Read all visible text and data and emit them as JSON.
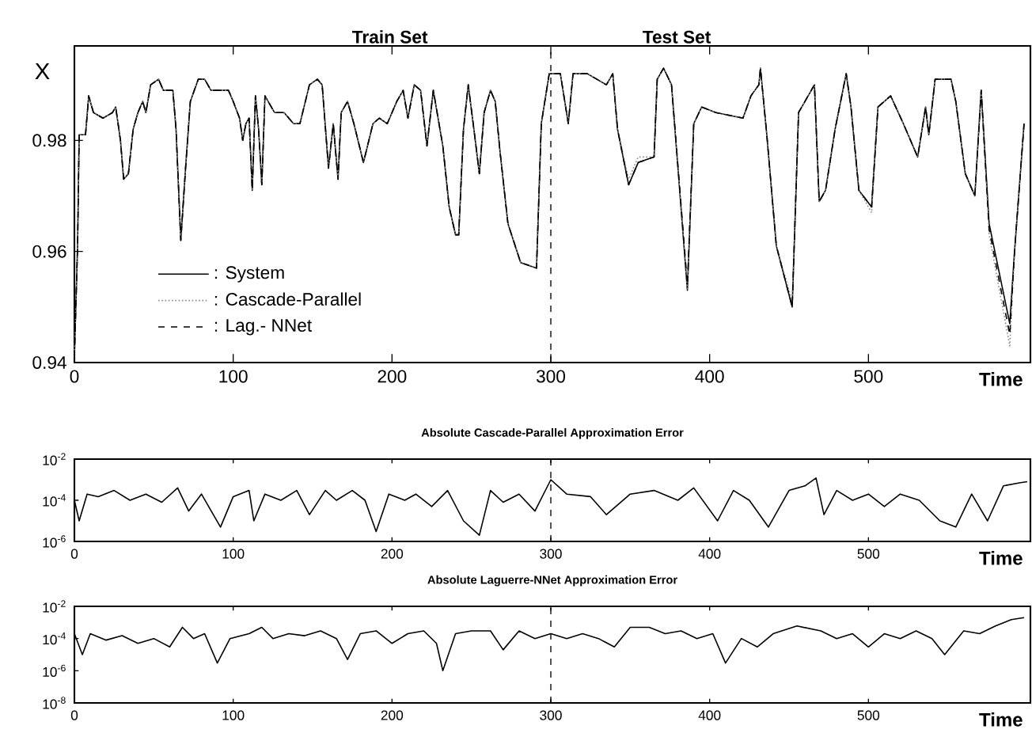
{
  "chart_data": [
    {
      "type": "line",
      "ylabel": "X",
      "xlabel": "Time",
      "xlim": [
        0,
        602
      ],
      "ylim": [
        0.94,
        0.997
      ],
      "xticks": [
        0,
        100,
        200,
        300,
        400,
        500
      ],
      "yticks": [
        0.94,
        0.96,
        0.98
      ],
      "legend": "bottom left",
      "annotations": [
        "Train Set",
        "Test Set"
      ],
      "ref_lines": [
        {
          "axis": "x",
          "value": 300,
          "line_style": "dashed",
          "color": "#000000"
        }
      ],
      "x": [
        0,
        2,
        3,
        7,
        9,
        12,
        18,
        24,
        26,
        29,
        31,
        34,
        37,
        40,
        43,
        45,
        48,
        53,
        56,
        62,
        64,
        67,
        70,
        73,
        78,
        82,
        86,
        97,
        100,
        104,
        106,
        108,
        110,
        112,
        114,
        116,
        118,
        120,
        126,
        132,
        138,
        142,
        148,
        153,
        156,
        160,
        163,
        166,
        168,
        172,
        176,
        182,
        188,
        192,
        197,
        200,
        203,
        207,
        210,
        214,
        218,
        222,
        226,
        229,
        232,
        236,
        240,
        242,
        245,
        248,
        252,
        255,
        258,
        262,
        265,
        268,
        273,
        281,
        291,
        294,
        299,
        306,
        311,
        314,
        323,
        335,
        339,
        342,
        349,
        355,
        365,
        367,
        371,
        376,
        386,
        390,
        395,
        404,
        421,
        426,
        431,
        432,
        436,
        442,
        452,
        456,
        466,
        469,
        473,
        479,
        486,
        489,
        494,
        502,
        506,
        514,
        522,
        531,
        536,
        538,
        542,
        552,
        555,
        561,
        567,
        571,
        576,
        589,
        592,
        598
      ],
      "series": [
        {
          "name": ": System",
          "color": "#000000",
          "line_style": "solid",
          "values": [
            0.941,
            0.961,
            0.981,
            0.981,
            0.988,
            0.985,
            0.984,
            0.985,
            0.986,
            0.98,
            0.973,
            0.974,
            0.982,
            0.985,
            0.987,
            0.985,
            0.99,
            0.991,
            0.989,
            0.989,
            0.982,
            0.962,
            0.975,
            0.987,
            0.991,
            0.991,
            0.989,
            0.989,
            0.987,
            0.984,
            0.98,
            0.983,
            0.984,
            0.971,
            0.988,
            0.982,
            0.972,
            0.988,
            0.985,
            0.985,
            0.983,
            0.983,
            0.99,
            0.991,
            0.99,
            0.975,
            0.983,
            0.973,
            0.985,
            0.987,
            0.983,
            0.976,
            0.983,
            0.984,
            0.983,
            0.985,
            0.987,
            0.989,
            0.984,
            0.99,
            0.989,
            0.979,
            0.989,
            0.984,
            0.979,
            0.968,
            0.963,
            0.963,
            0.982,
            0.99,
            0.981,
            0.974,
            0.985,
            0.989,
            0.987,
            0.978,
            0.965,
            0.958,
            0.957,
            0.983,
            0.992,
            0.992,
            0.983,
            0.992,
            0.992,
            0.99,
            0.992,
            0.982,
            0.972,
            0.976,
            0.977,
            0.991,
            0.993,
            0.99,
            0.953,
            0.983,
            0.986,
            0.985,
            0.984,
            0.988,
            0.99,
            0.993,
            0.981,
            0.961,
            0.95,
            0.985,
            0.99,
            0.969,
            0.971,
            0.982,
            0.992,
            0.986,
            0.971,
            0.968,
            0.986,
            0.988,
            0.983,
            0.977,
            0.986,
            0.981,
            0.991,
            0.991,
            0.987,
            0.974,
            0.97,
            0.989,
            0.965,
            0.947,
            0.96,
            0.983
          ]
        },
        {
          "name": ": Cascade-Parallel",
          "color": "#888888",
          "line_style": "dotted",
          "values": [
            0.941,
            0.961,
            0.981,
            0.981,
            0.988,
            0.985,
            0.984,
            0.985,
            0.986,
            0.98,
            0.973,
            0.974,
            0.982,
            0.985,
            0.987,
            0.985,
            0.99,
            0.991,
            0.989,
            0.989,
            0.982,
            0.962,
            0.975,
            0.987,
            0.991,
            0.991,
            0.989,
            0.989,
            0.987,
            0.984,
            0.98,
            0.983,
            0.984,
            0.971,
            0.988,
            0.982,
            0.972,
            0.988,
            0.985,
            0.985,
            0.983,
            0.983,
            0.99,
            0.991,
            0.99,
            0.975,
            0.983,
            0.973,
            0.985,
            0.987,
            0.983,
            0.976,
            0.983,
            0.984,
            0.983,
            0.985,
            0.987,
            0.989,
            0.984,
            0.99,
            0.989,
            0.979,
            0.989,
            0.984,
            0.979,
            0.968,
            0.963,
            0.963,
            0.982,
            0.99,
            0.981,
            0.974,
            0.985,
            0.989,
            0.987,
            0.978,
            0.965,
            0.958,
            0.957,
            0.983,
            0.992,
            0.992,
            0.983,
            0.992,
            0.992,
            0.99,
            0.992,
            0.982,
            0.973,
            0.977,
            0.977,
            0.991,
            0.993,
            0.99,
            0.953,
            0.983,
            0.986,
            0.985,
            0.984,
            0.988,
            0.99,
            0.993,
            0.981,
            0.961,
            0.951,
            0.985,
            0.99,
            0.969,
            0.971,
            0.982,
            0.992,
            0.986,
            0.971,
            0.967,
            0.986,
            0.988,
            0.983,
            0.977,
            0.986,
            0.981,
            0.991,
            0.991,
            0.987,
            0.974,
            0.97,
            0.989,
            0.963,
            0.943,
            0.96,
            0.983
          ]
        },
        {
          "name": ": Lag.- NNet",
          "color": "#000000",
          "line_style": "dashed",
          "values": [
            0.941,
            0.961,
            0.981,
            0.981,
            0.988,
            0.985,
            0.984,
            0.985,
            0.986,
            0.98,
            0.973,
            0.974,
            0.982,
            0.985,
            0.987,
            0.985,
            0.99,
            0.991,
            0.989,
            0.989,
            0.982,
            0.962,
            0.975,
            0.987,
            0.991,
            0.991,
            0.989,
            0.989,
            0.987,
            0.984,
            0.98,
            0.983,
            0.984,
            0.971,
            0.988,
            0.982,
            0.972,
            0.988,
            0.985,
            0.985,
            0.983,
            0.983,
            0.99,
            0.991,
            0.99,
            0.975,
            0.983,
            0.973,
            0.985,
            0.987,
            0.983,
            0.976,
            0.983,
            0.984,
            0.983,
            0.985,
            0.987,
            0.989,
            0.984,
            0.99,
            0.989,
            0.979,
            0.989,
            0.984,
            0.979,
            0.968,
            0.963,
            0.963,
            0.982,
            0.99,
            0.981,
            0.974,
            0.985,
            0.989,
            0.987,
            0.978,
            0.965,
            0.958,
            0.957,
            0.983,
            0.992,
            0.992,
            0.983,
            0.992,
            0.992,
            0.99,
            0.992,
            0.982,
            0.972,
            0.976,
            0.977,
            0.991,
            0.993,
            0.99,
            0.954,
            0.983,
            0.986,
            0.985,
            0.984,
            0.988,
            0.99,
            0.993,
            0.981,
            0.961,
            0.95,
            0.985,
            0.99,
            0.969,
            0.971,
            0.982,
            0.992,
            0.986,
            0.971,
            0.968,
            0.986,
            0.988,
            0.983,
            0.977,
            0.986,
            0.981,
            0.991,
            0.991,
            0.987,
            0.974,
            0.97,
            0.989,
            0.964,
            0.945,
            0.96,
            0.983
          ]
        }
      ]
    },
    {
      "type": "line",
      "title": "Absolute  Cascade-Parallel Approximation Error",
      "xlabel": "Time",
      "log": "y",
      "xlim": [
        0,
        602
      ],
      "ylim": [
        1e-06,
        0.01
      ],
      "xticks": [
        0,
        100,
        200,
        300,
        400,
        500
      ],
      "yticks": [
        {
          "value": 0.01,
          "label": "10$^{-2}$"
        },
        {
          "value": 0.0001,
          "label": "10$^{-4}$"
        },
        {
          "value": 1e-06,
          "label": "10$^{-6}$"
        }
      ],
      "ref_lines": [
        {
          "axis": "x",
          "value": 300,
          "line_style": "dashed",
          "color": "#000000"
        }
      ],
      "x": [
        0,
        3,
        8,
        15,
        25,
        35,
        45,
        55,
        65,
        72,
        80,
        92,
        100,
        110,
        113,
        120,
        130,
        140,
        148,
        158,
        165,
        175,
        183,
        190,
        198,
        208,
        215,
        225,
        235,
        245,
        255,
        262,
        270,
        280,
        290,
        300,
        310,
        325,
        335,
        350,
        365,
        380,
        390,
        405,
        415,
        425,
        437,
        450,
        460,
        467,
        472,
        480,
        490,
        500,
        510,
        520,
        532,
        545,
        555,
        565,
        575,
        585,
        595,
        600
      ],
      "series": [
        {
          "color": "#000000",
          "line_style": "solid",
          "values": [
            0.0001,
            1e-05,
            0.0002,
            0.00015,
            0.0003,
            0.0001,
            0.0002,
            8e-05,
            0.0004,
            3e-05,
            0.0002,
            5e-06,
            0.00015,
            0.0003,
            1e-05,
            0.0002,
            0.0001,
            0.0003,
            2e-05,
            0.0003,
            0.0001,
            0.0003,
            0.0001,
            3e-06,
            0.0002,
            0.0001,
            0.0002,
            5e-05,
            0.0003,
            1e-05,
            2e-06,
            0.0003,
            8e-05,
            0.0002,
            3e-05,
            0.001,
            0.0002,
            0.00015,
            2e-05,
            0.0002,
            0.0003,
            0.0001,
            0.0004,
            1e-05,
            0.0003,
            0.0001,
            5e-06,
            0.0003,
            0.0005,
            0.0012,
            2e-05,
            0.0003,
            0.0001,
            0.0002,
            5e-05,
            0.0002,
            0.0001,
            1e-05,
            5e-06,
            0.0002,
            1e-05,
            0.0005,
            0.0007,
            0.0008
          ]
        }
      ]
    },
    {
      "type": "line",
      "title": "Absolute  Laguerre-NNet Approximation Error",
      "xlabel": "Time",
      "log": "y",
      "xlim": [
        0,
        602
      ],
      "ylim": [
        1e-08,
        0.01
      ],
      "xticks": [
        0,
        100,
        200,
        300,
        400,
        500
      ],
      "yticks": [
        {
          "value": 0.01,
          "label": "10$^{-2}$"
        },
        {
          "value": 0.0001,
          "label": "10$^{-4}$"
        },
        {
          "value": 1e-06,
          "label": "10$^{-6}$"
        },
        {
          "value": 1e-08,
          "label": "10$^{-8}$"
        }
      ],
      "ref_lines": [
        {
          "axis": "x",
          "value": 300,
          "line_style": "dashed",
          "color": "#000000"
        }
      ],
      "x": [
        0,
        5,
        10,
        20,
        30,
        40,
        50,
        60,
        68,
        75,
        82,
        90,
        98,
        110,
        118,
        125,
        135,
        145,
        155,
        165,
        172,
        180,
        190,
        200,
        210,
        220,
        228,
        232,
        240,
        250,
        262,
        270,
        280,
        290,
        300,
        310,
        320,
        330,
        340,
        350,
        362,
        372,
        382,
        392,
        402,
        410,
        420,
        430,
        440,
        455,
        470,
        480,
        490,
        500,
        510,
        520,
        530,
        540,
        548,
        560,
        570,
        580,
        590,
        598
      ],
      "series": [
        {
          "color": "#000000",
          "line_style": "solid",
          "values": [
            0.0002,
            1e-05,
            0.0002,
            8e-05,
            0.00015,
            5e-05,
            0.0001,
            3e-05,
            0.0005,
            0.0001,
            0.0002,
            3e-06,
            0.0001,
            0.0002,
            0.0005,
            0.0001,
            0.0002,
            0.00015,
            0.0003,
            0.0001,
            5e-06,
            0.0002,
            0.0003,
            5e-05,
            0.0002,
            0.0003,
            5e-05,
            1e-06,
            0.0002,
            0.0003,
            0.0003,
            2e-05,
            0.0003,
            0.0001,
            0.0002,
            0.0001,
            0.0002,
            0.0001,
            3e-05,
            0.0005,
            0.0005,
            0.0002,
            0.0003,
            0.0001,
            0.0002,
            3e-06,
            0.0001,
            3e-05,
            0.0002,
            0.0006,
            0.0003,
            0.0001,
            0.0002,
            3e-05,
            0.0002,
            0.0001,
            0.0003,
            0.0001,
            1e-05,
            0.0003,
            0.0002,
            0.0006,
            0.0015,
            0.002
          ]
        }
      ]
    }
  ]
}
